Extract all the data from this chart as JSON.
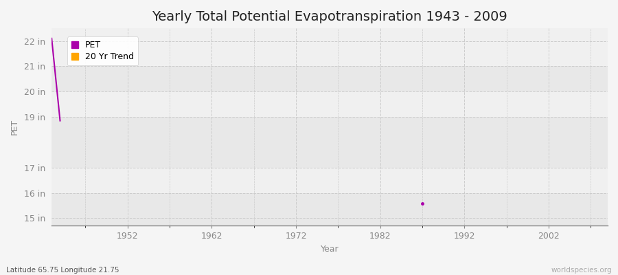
{
  "title": "Yearly Total Potential Evapotranspiration 1943 - 2009",
  "xlabel": "Year",
  "ylabel": "PET",
  "fig_bg_color": "#f5f5f5",
  "plot_bg_color": "#ebebeb",
  "band_colors": [
    "#e8e8e8",
    "#f0f0f0"
  ],
  "ytick_labels": [
    "15 in",
    "16 in",
    "17 in",
    "19 in",
    "20 in",
    "21 in",
    "22 in"
  ],
  "ytick_values": [
    15,
    16,
    17,
    19,
    20,
    21,
    22
  ],
  "xlim": [
    1943,
    2009
  ],
  "ylim": [
    14.7,
    22.5
  ],
  "xtick_values": [
    1952,
    1962,
    1972,
    1982,
    1992,
    2002
  ],
  "pet_line_x": [
    1943,
    1944
  ],
  "pet_line_y": [
    22.1,
    18.85
  ],
  "pet_dot_x": [
    1987
  ],
  "pet_dot_y": [
    15.58
  ],
  "pet_color": "#aa00aa",
  "trend_color": "#ffa500",
  "subtitle": "Latitude 65.75 Longitude 21.75",
  "watermark": "worldspecies.org",
  "title_fontsize": 14,
  "axis_fontsize": 9,
  "label_fontsize": 9,
  "tick_color": "#888888",
  "grid_color": "#cccccc",
  "grid_linestyle": "--"
}
